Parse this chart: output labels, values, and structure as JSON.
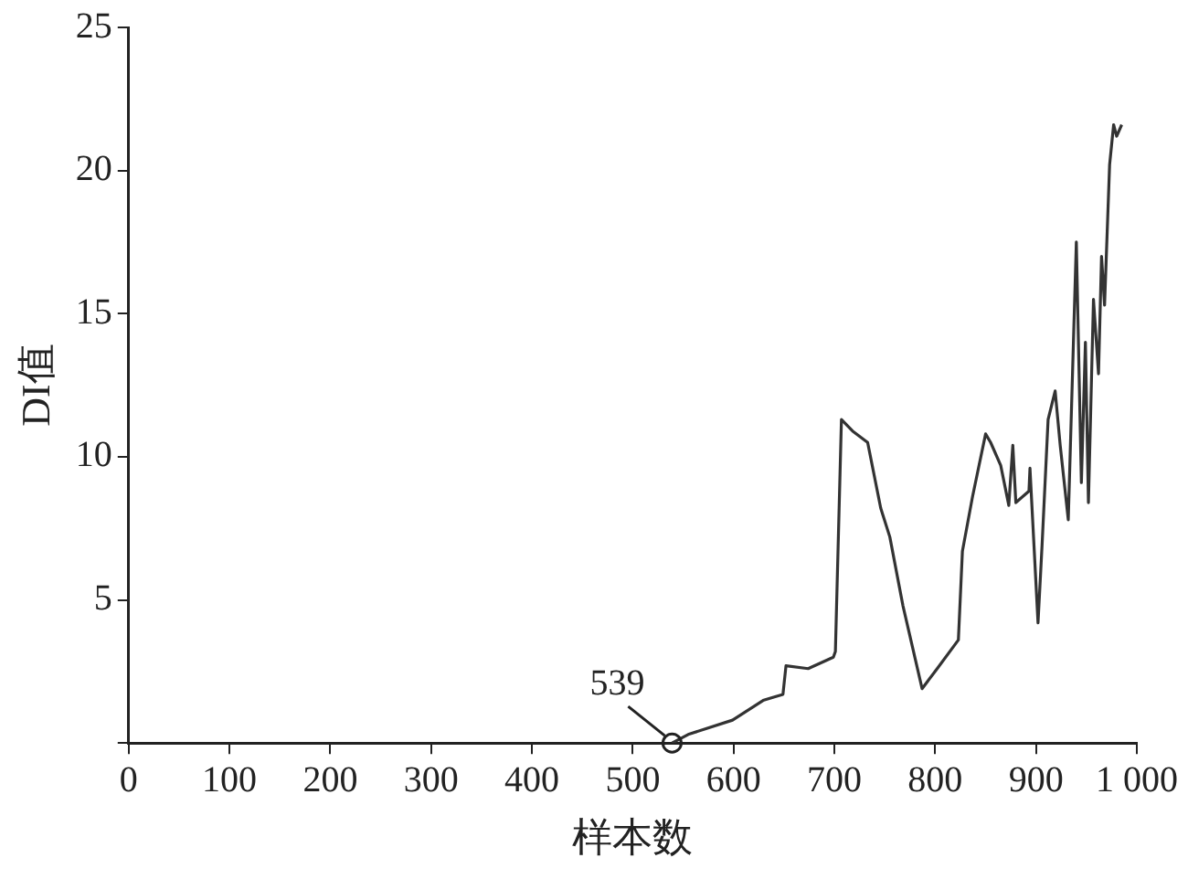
{
  "chart_data": {
    "type": "line",
    "xlabel": "样本数",
    "ylabel": "DI值",
    "x": [
      539,
      555,
      599,
      630,
      649,
      652,
      674,
      699,
      701,
      707,
      718,
      733,
      746,
      755,
      768,
      787,
      802,
      823,
      827,
      837,
      850,
      855,
      865,
      873,
      877,
      880,
      893,
      894,
      902,
      906,
      912,
      919,
      924,
      932,
      940,
      945,
      949,
      952,
      957,
      962,
      965,
      968,
      973,
      977,
      980,
      985
    ],
    "series": [
      {
        "color": "#333333",
        "values": [
          0,
          0.3,
          0.8,
          1.5,
          1.7,
          2.7,
          2.6,
          3.0,
          3.2,
          11.3,
          10.9,
          10.5,
          8.2,
          7.2,
          4.8,
          1.9,
          2.6,
          3.6,
          6.7,
          8.6,
          10.8,
          10.5,
          9.7,
          8.3,
          10.4,
          8.4,
          8.8,
          9.6,
          4.2,
          6.9,
          11.3,
          12.3,
          10.4,
          7.8,
          17.5,
          9.1,
          14.0,
          8.4,
          15.5,
          12.9,
          17.0,
          15.3,
          20.2,
          21.6,
          21.2,
          21.6
        ]
      }
    ],
    "xlim": [
      0,
      1000
    ],
    "xticks": [
      0,
      100,
      200,
      300,
      400,
      500,
      600,
      700,
      800,
      900,
      {
        "value": 1000,
        "label": "1 000"
      }
    ],
    "ylim": [
      0,
      25
    ],
    "yticks": [
      {
        "value": 0,
        "label": null
      },
      5,
      10,
      15,
      20,
      25
    ],
    "annotations": [
      {
        "text": "539",
        "x": 539,
        "y": 0
      }
    ],
    "grid": false,
    "legend": false,
    "marker": "none",
    "line_style": "solid"
  }
}
